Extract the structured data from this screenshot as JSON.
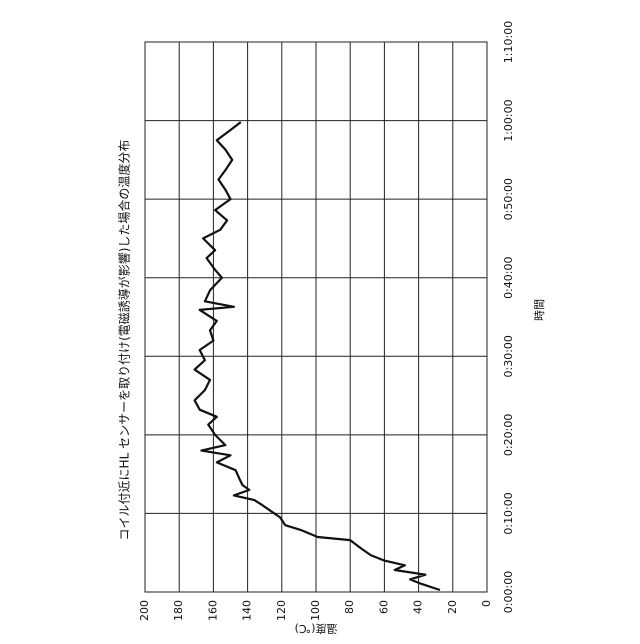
{
  "chart_data": {
    "type": "line",
    "title": "コイル付近にHL センサーを取り付け(電磁誘導が影響)した場合の温度分布",
    "x_label": "時間",
    "y_label": "温度(℃)",
    "x": [
      0.25,
      1.0,
      1.6,
      2.2,
      2.8,
      3.4,
      4.0,
      4.7,
      5.6,
      6.6,
      7.0,
      7.9,
      8.5,
      9.5,
      10.4,
      11.0,
      11.7,
      12.3,
      13.0,
      13.6,
      14.5,
      15.5,
      16.5,
      17.4,
      18.0,
      18.7,
      20.0,
      21.3,
      22.3,
      23.2,
      24.4,
      25.7,
      27.0,
      28.3,
      29.5,
      30.8,
      32.0,
      33.3,
      34.5,
      35.9,
      36.3,
      37.0,
      38.4,
      40.0,
      41.0,
      42.5,
      43.5,
      45.0,
      46.1,
      47.3,
      48.6,
      50.0,
      51.2,
      52.5,
      53.7,
      55.0,
      56.3,
      57.5,
      58.8,
      59.8
    ],
    "series": [
      {
        "name": "温度",
        "color": "#111111",
        "values": [
          27.5,
          38,
          45,
          36,
          54,
          48,
          60,
          68,
          74,
          80,
          99,
          109,
          118,
          121,
          127,
          131,
          136,
          148,
          139,
          143,
          145,
          147,
          158,
          150,
          167,
          153,
          159,
          163,
          158,
          168,
          171,
          165,
          162,
          171,
          165,
          168,
          160,
          162,
          158,
          168,
          148,
          165,
          162,
          155,
          159,
          164,
          159,
          166,
          156,
          152,
          159,
          150,
          153,
          157,
          153,
          149,
          153,
          158,
          150,
          144
        ]
      }
    ],
    "xlim": [
      0,
      70
    ],
    "xticks": [
      {
        "value": 0,
        "label": "0:00:00"
      },
      {
        "value": 10,
        "label": "0:10:00"
      },
      {
        "value": 20,
        "label": "0:20:00"
      },
      {
        "value": 30,
        "label": "0:30:00"
      },
      {
        "value": 40,
        "label": "0:40:00"
      },
      {
        "value": 50,
        "label": "0:50:00"
      },
      {
        "value": 60,
        "label": "1:00:00"
      },
      {
        "value": 70,
        "label": "1:10:00"
      }
    ],
    "ylim": [
      0,
      200
    ],
    "yticks": [
      0,
      20,
      40,
      60,
      80,
      100,
      120,
      140,
      160,
      180,
      200
    ],
    "grid": true
  }
}
